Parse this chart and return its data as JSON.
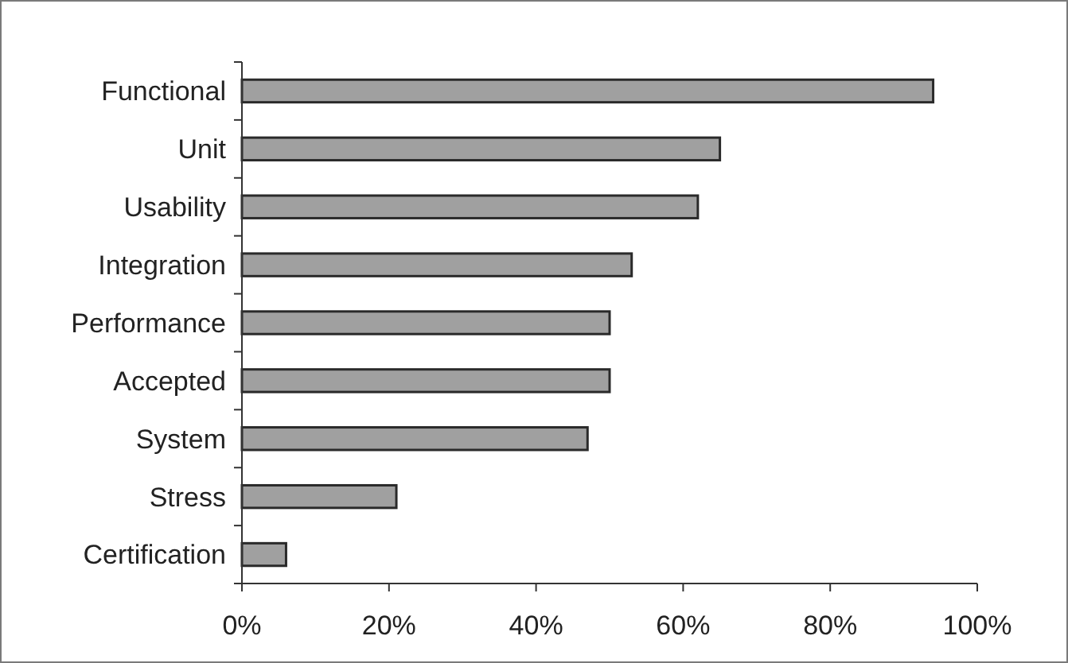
{
  "chart_data": {
    "type": "bar",
    "orientation": "horizontal",
    "categories": [
      "Functional",
      "Unit",
      "Usability",
      "Integration",
      "Performance",
      "Accepted",
      "System",
      "Stress",
      "Certification"
    ],
    "values": [
      94,
      65,
      62,
      53,
      50,
      50,
      47,
      21,
      6
    ],
    "color": "#a0a0a0",
    "xlim": [
      0,
      100
    ],
    "xticks": [
      {
        "value": 0,
        "label": "0%"
      },
      {
        "value": 20,
        "label": "20%"
      },
      {
        "value": 40,
        "label": "40%"
      },
      {
        "value": 60,
        "label": "60%"
      },
      {
        "value": 80,
        "label": "80%"
      },
      {
        "value": 100,
        "label": "100%"
      }
    ]
  }
}
